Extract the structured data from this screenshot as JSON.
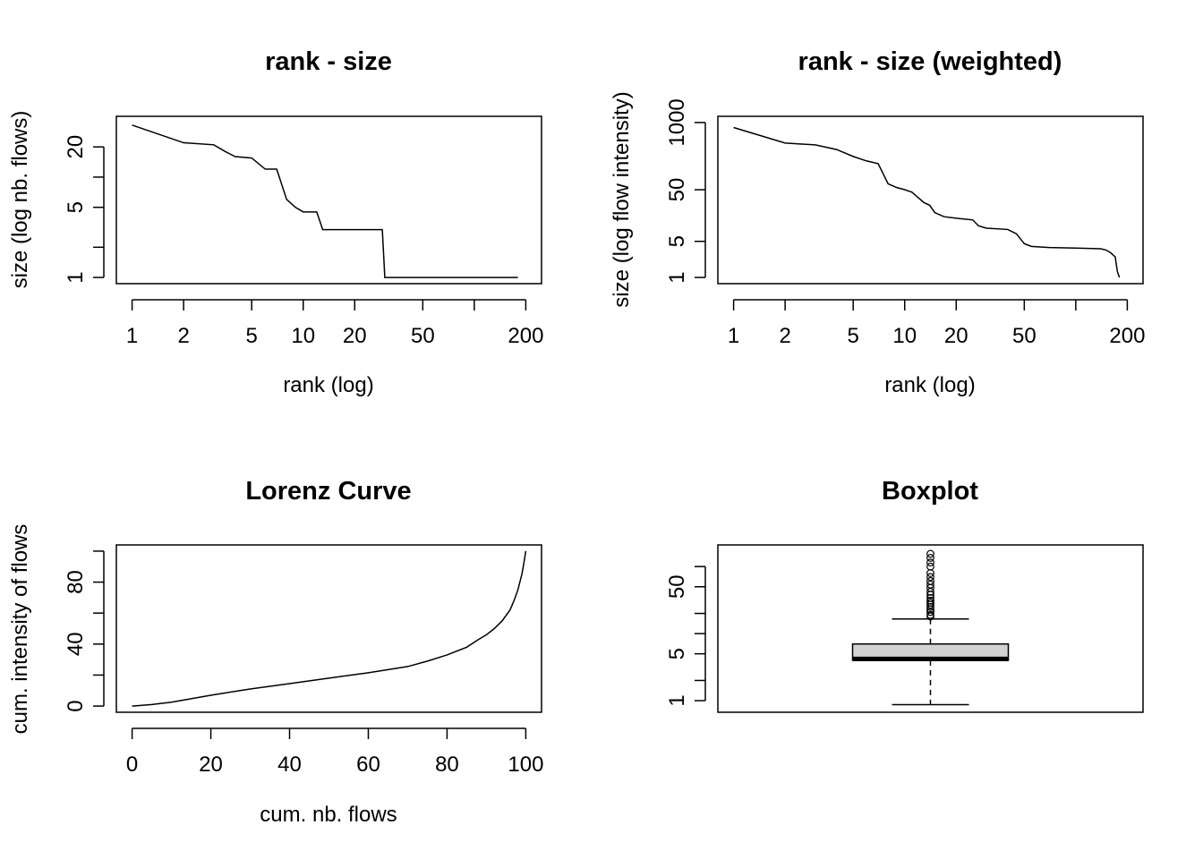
{
  "chart_data": [
    {
      "type": "line",
      "title": "rank - size",
      "xlabel": "rank (log)",
      "ylabel": "size (log nb. flows)",
      "x_scale": "log",
      "y_scale": "log",
      "xlim": [
        1,
        200
      ],
      "ylim": [
        1,
        35
      ],
      "x_ticks": [
        1,
        2,
        5,
        10,
        20,
        50,
        100,
        200
      ],
      "x_tick_labels": [
        "1",
        "2",
        "5",
        "10",
        "20",
        "50",
        "",
        "200"
      ],
      "y_ticks": [
        1,
        2,
        5,
        10,
        20
      ],
      "y_tick_labels": [
        "1",
        "",
        "5",
        "",
        "20"
      ],
      "x": [
        1,
        2,
        3,
        3.5,
        4,
        5,
        6,
        7,
        8,
        9,
        10,
        12,
        13,
        20,
        29,
        30,
        50,
        100,
        150,
        180
      ],
      "y": [
        33,
        22,
        21,
        18,
        16,
        15.5,
        12,
        12,
        6,
        5,
        4.5,
        4.5,
        3,
        3,
        3,
        1,
        1,
        1,
        1,
        1
      ]
    },
    {
      "type": "line",
      "title": "rank - size (weighted)",
      "xlabel": "rank (log)",
      "ylabel": "size (log flow intensity)",
      "x_scale": "log",
      "y_scale": "log",
      "xlim": [
        1,
        200
      ],
      "ylim": [
        1,
        1000
      ],
      "x_ticks": [
        1,
        2,
        5,
        10,
        20,
        50,
        100,
        200
      ],
      "x_tick_labels": [
        "1",
        "2",
        "5",
        "10",
        "20",
        "50",
        "",
        "200"
      ],
      "y_ticks": [
        1,
        5,
        50,
        1000
      ],
      "y_tick_labels": [
        "1",
        "5",
        "50",
        "1000"
      ],
      "x": [
        1,
        2,
        3,
        4,
        5,
        6,
        7,
        8,
        9,
        10,
        11,
        12,
        13,
        14,
        15,
        17,
        20,
        25,
        27,
        30,
        40,
        45,
        50,
        55,
        70,
        100,
        140,
        150,
        160,
        170,
        175,
        180
      ],
      "y": [
        800,
        400,
        370,
        300,
        220,
        180,
        160,
        65,
        55,
        50,
        45,
        35,
        28,
        25,
        18,
        15,
        14,
        13,
        10,
        9,
        8.5,
        7,
        4.5,
        4,
        3.8,
        3.7,
        3.6,
        3.4,
        3,
        2.5,
        1.3,
        1
      ]
    },
    {
      "type": "line",
      "title": "Lorenz Curve",
      "xlabel": "cum. nb. flows",
      "ylabel": "cum. intensity of flows",
      "xlim": [
        0,
        100
      ],
      "ylim": [
        0,
        100
      ],
      "x_ticks": [
        0,
        20,
        40,
        60,
        80,
        100
      ],
      "x_tick_labels": [
        "0",
        "20",
        "40",
        "60",
        "80",
        "100"
      ],
      "y_ticks": [
        0,
        20,
        40,
        60,
        80,
        100
      ],
      "y_tick_labels": [
        "0",
        "",
        "40",
        "",
        "80",
        ""
      ],
      "x": [
        0,
        5,
        10,
        20,
        30,
        40,
        50,
        60,
        70,
        75,
        80,
        85,
        88,
        90,
        92,
        94,
        96,
        97,
        98,
        99,
        99.5,
        100
      ],
      "y": [
        0,
        1,
        2.5,
        7,
        11,
        14.5,
        18,
        21.5,
        25.5,
        29,
        33,
        38,
        43,
        46,
        50,
        55,
        62,
        68,
        75,
        85,
        92,
        100
      ]
    },
    {
      "type": "box",
      "title": "Boxplot",
      "y_scale": "log",
      "ylim": [
        0.83,
        170
      ],
      "y_ticks": [
        1,
        2,
        5,
        10,
        20,
        50,
        100
      ],
      "y_tick_labels": [
        "1",
        "",
        "5",
        "",
        "",
        "50",
        ""
      ],
      "whisker_low": 0.87,
      "q1": 4,
      "median": 4.2,
      "q3": 7,
      "whisker_high": 16.5,
      "outliers": [
        18,
        19,
        21,
        23,
        25,
        27,
        29,
        31,
        34,
        38,
        42,
        48,
        54,
        61,
        70,
        80,
        100,
        115,
        135,
        155
      ]
    }
  ]
}
